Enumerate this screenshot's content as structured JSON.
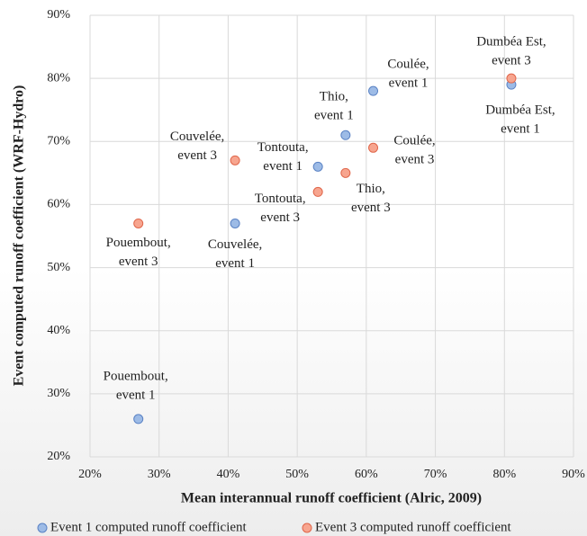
{
  "chart_data": {
    "type": "scatter",
    "xlabel": "Mean interannual runoff coefficient (Alric, 2009)",
    "ylabel": "Event computed runoff coefficient (WRF-Hydro)",
    "xlim": [
      20,
      90
    ],
    "xticks": [
      {
        "value": 20,
        "label": "20%"
      },
      {
        "value": 30,
        "label": "30%"
      },
      {
        "value": 40,
        "label": "40%"
      },
      {
        "value": 50,
        "label": "50%"
      },
      {
        "value": 60,
        "label": "60%"
      },
      {
        "value": 70,
        "label": "70%"
      },
      {
        "value": 80,
        "label": "80%"
      },
      {
        "value": 90,
        "label": "90%"
      }
    ],
    "ylim": [
      20,
      90
    ],
    "yticks": [
      {
        "value": 20,
        "label": "20%"
      },
      {
        "value": 30,
        "label": "30%"
      },
      {
        "value": 40,
        "label": "40%"
      },
      {
        "value": 50,
        "label": "50%"
      },
      {
        "value": 60,
        "label": "60%"
      },
      {
        "value": 70,
        "label": "70%"
      },
      {
        "value": 80,
        "label": "80%"
      },
      {
        "value": 90,
        "label": "90%"
      }
    ],
    "grid": true,
    "legend": "bottom",
    "series": [
      {
        "name": "Event 1 computed runoff coefficient",
        "color": "#9dbbe6",
        "edge": "#5a82c4",
        "x": [
          27,
          41,
          53,
          57,
          61,
          81
        ],
        "values": [
          26,
          57,
          66,
          71,
          78,
          79
        ],
        "labels": [
          [
            "Pouembout,",
            "event 1"
          ],
          [
            "Couvelée,",
            "event 1"
          ],
          [
            "Tontouta,",
            "event 1"
          ],
          [
            "Thio,",
            "event 1"
          ],
          [
            "Coulée,",
            "event 1"
          ],
          [
            "Dumbéa Est,",
            "event 1"
          ]
        ]
      },
      {
        "name": "Event 3 computed runoff coefficient",
        "color": "#f7a58f",
        "edge": "#e0664a",
        "x": [
          27,
          41,
          53,
          57,
          61,
          81
        ],
        "values": [
          57,
          67,
          62,
          65,
          69,
          80
        ],
        "labels": [
          [
            "Pouembout,",
            "event 3"
          ],
          [
            "Couvelée,",
            "event 3"
          ],
          [
            "Tontouta,",
            "event 3"
          ],
          [
            "Thio,",
            "event 3"
          ],
          [
            "Coulée,",
            "event 3"
          ],
          [
            "Dumbéa Est,",
            "event 3"
          ]
        ]
      }
    ]
  }
}
